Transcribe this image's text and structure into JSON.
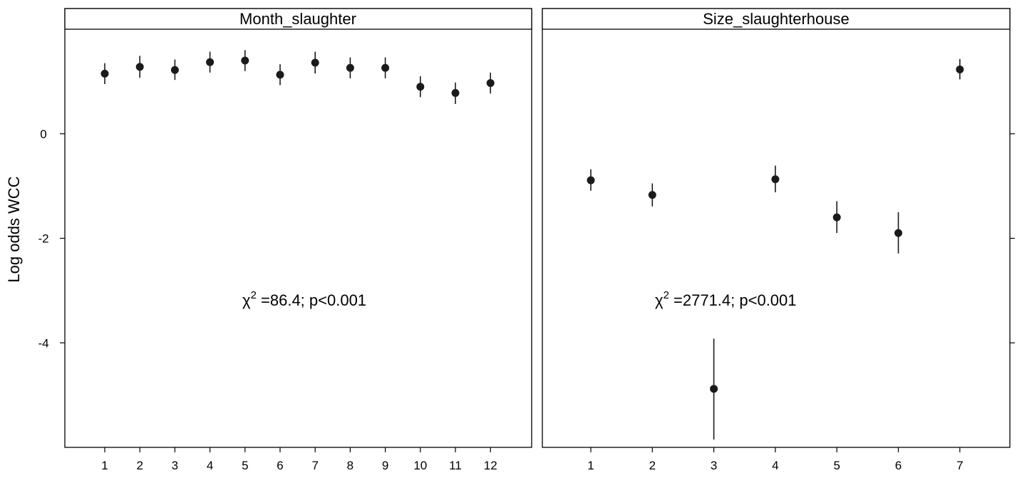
{
  "chart_data": {
    "type": "scatter",
    "ylabel": "Log odds WCC",
    "ylim": [
      -6,
      2
    ],
    "yticks": [
      0,
      -2,
      -4
    ],
    "panels": [
      {
        "title": "Month_slaughter",
        "annotation_stat": "2",
        "annotation_rest": " =86.4; p<0.001",
        "categories": [
          "1",
          "2",
          "3",
          "4",
          "5",
          "6",
          "7",
          "8",
          "9",
          "10",
          "11",
          "12"
        ],
        "values": [
          1.15,
          1.28,
          1.22,
          1.37,
          1.4,
          1.13,
          1.36,
          1.26,
          1.26,
          0.9,
          0.78,
          0.97
        ],
        "lower": [
          0.95,
          1.07,
          1.03,
          1.17,
          1.2,
          0.93,
          1.15,
          1.06,
          1.06,
          0.7,
          0.57,
          0.77
        ],
        "upper": [
          1.35,
          1.49,
          1.42,
          1.57,
          1.6,
          1.33,
          1.57,
          1.46,
          1.46,
          1.1,
          0.98,
          1.17
        ]
      },
      {
        "title": "Size_slaughterhouse",
        "annotation_stat": "2",
        "annotation_rest": " =2771.4; p<0.001",
        "categories": [
          "1",
          "2",
          "3",
          "4",
          "5",
          "6",
          "7"
        ],
        "values": [
          -0.89,
          -1.17,
          -4.88,
          -0.87,
          -1.6,
          -1.9,
          1.23
        ],
        "lower": [
          -1.09,
          -1.39,
          -5.85,
          -1.12,
          -1.9,
          -2.29,
          1.04
        ],
        "upper": [
          -0.68,
          -0.95,
          -3.92,
          -0.61,
          -1.29,
          -1.5,
          1.43
        ]
      }
    ]
  }
}
